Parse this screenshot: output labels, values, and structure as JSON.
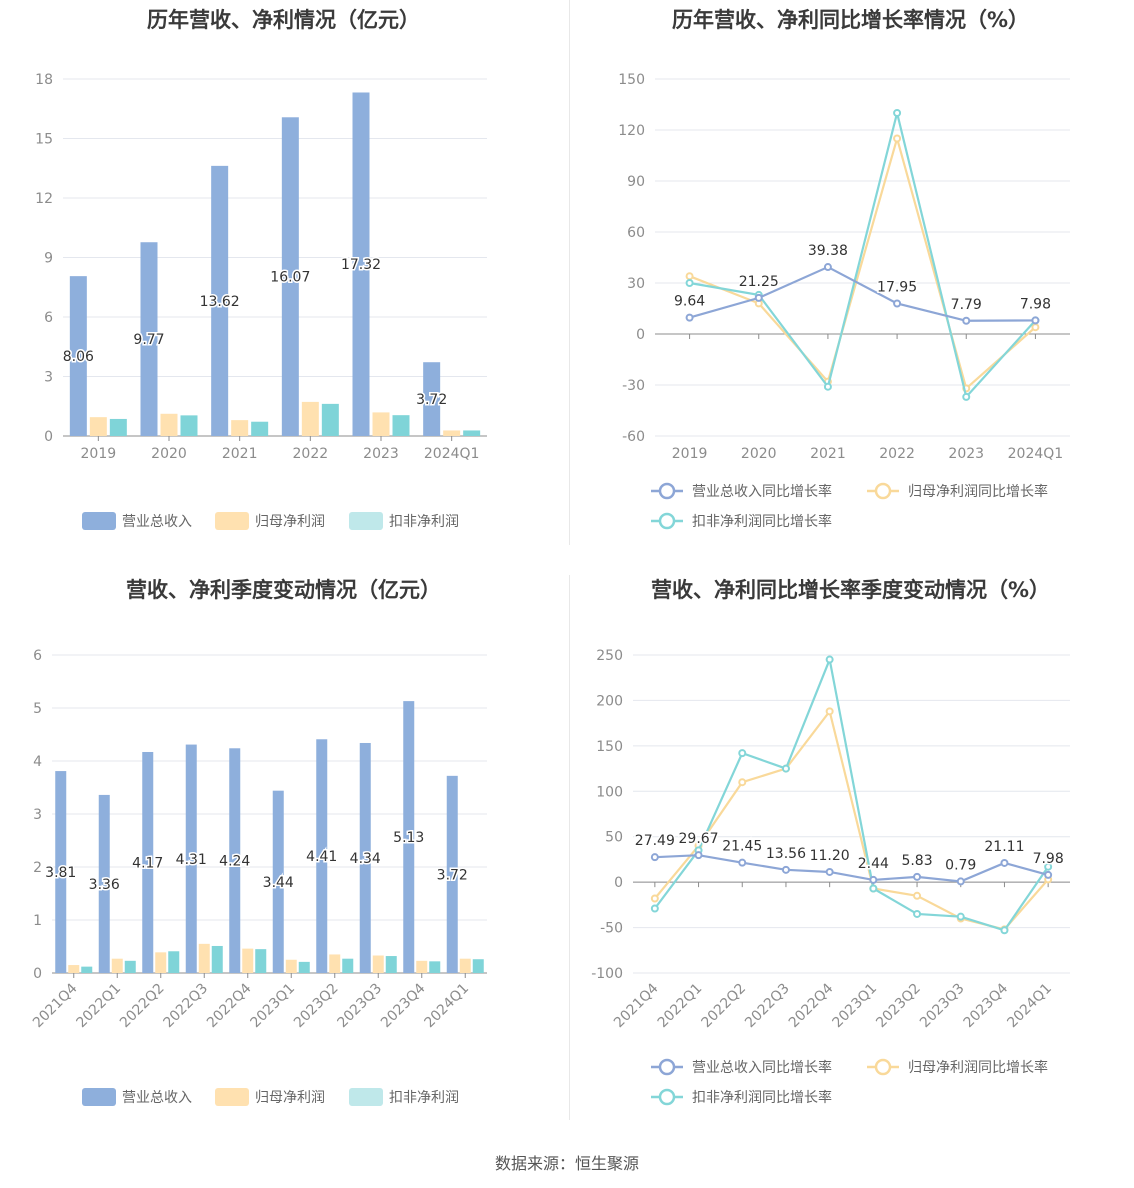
{
  "source_text": "数据来源：恒生聚源",
  "colors": {
    "revenue": "#8eafdc",
    "net_profit": "#ffe1b0",
    "deducted_profit": "#7fd4d8",
    "revenue_line": "#8da6d6",
    "net_line": "#f9d99a",
    "deducted_line": "#83d6d8",
    "grid": "#e4e7ee",
    "axis": "#8c8c8c"
  },
  "chart_data": [
    {
      "type": "bar",
      "title": "历年营收、净利情况（亿元）",
      "categories": [
        "2019",
        "2020",
        "2021",
        "2022",
        "2023",
        "2024Q1"
      ],
      "ylim": [
        0,
        18
      ],
      "yticks": [
        0,
        3,
        6,
        9,
        12,
        15,
        18
      ],
      "series": [
        {
          "name": "营业总收入",
          "values": [
            8.06,
            9.77,
            13.62,
            16.07,
            17.32,
            3.72
          ],
          "labels": [
            "8.06",
            "9.77",
            "13.62",
            "16.07",
            "17.32",
            "3.72"
          ]
        },
        {
          "name": "归母净利润",
          "values": [
            0.95,
            1.12,
            0.8,
            1.72,
            1.19,
            0.28
          ]
        },
        {
          "name": "扣非净利润",
          "values": [
            0.86,
            1.04,
            0.72,
            1.62,
            1.05,
            0.28
          ]
        }
      ],
      "legend": "bottom"
    },
    {
      "type": "line",
      "title": "历年营收、净利同比增长率情况（%）",
      "categories": [
        "2019",
        "2020",
        "2021",
        "2022",
        "2023",
        "2024Q1"
      ],
      "ylim": [
        -60,
        150
      ],
      "yticks": [
        -60,
        -30,
        0,
        30,
        60,
        90,
        120,
        150
      ],
      "series": [
        {
          "name": "营业总收入同比增长率",
          "values": [
            9.64,
            21.25,
            39.38,
            17.95,
            7.79,
            7.98
          ],
          "labels": [
            "9.64",
            "21.25",
            "39.38",
            "17.95",
            "7.79",
            "7.98"
          ]
        },
        {
          "name": "归母净利润同比增长率",
          "values": [
            34,
            18,
            -28,
            115,
            -32,
            4
          ]
        },
        {
          "name": "扣非净利润同比增长率",
          "values": [
            30,
            23,
            -31,
            130,
            -37,
            8
          ]
        }
      ],
      "legend": "bottom"
    },
    {
      "type": "bar",
      "title": "营收、净利季度变动情况（亿元）",
      "categories": [
        "2021Q4",
        "2022Q1",
        "2022Q2",
        "2022Q3",
        "2022Q4",
        "2023Q1",
        "2023Q2",
        "2023Q3",
        "2023Q4",
        "2024Q1"
      ],
      "ylim": [
        0,
        6
      ],
      "yticks": [
        0,
        1,
        2,
        3,
        4,
        5,
        6
      ],
      "series": [
        {
          "name": "营业总收入",
          "values": [
            3.81,
            3.36,
            4.17,
            4.31,
            4.24,
            3.44,
            4.41,
            4.34,
            5.13,
            3.72
          ],
          "labels": [
            "3.81",
            "3.36",
            "4.17",
            "4.31",
            "4.24",
            "3.44",
            "4.41",
            "4.34",
            "5.13",
            "3.72"
          ]
        },
        {
          "name": "归母净利润",
          "values": [
            0.15,
            0.27,
            0.39,
            0.55,
            0.46,
            0.25,
            0.35,
            0.33,
            0.23,
            0.27
          ]
        },
        {
          "name": "扣非净利润",
          "values": [
            0.12,
            0.23,
            0.41,
            0.51,
            0.45,
            0.21,
            0.27,
            0.32,
            0.22,
            0.26
          ]
        }
      ],
      "legend": "bottom"
    },
    {
      "type": "line",
      "title": "营收、净利同比增长率季度变动情况（%）",
      "categories": [
        "2021Q4",
        "2022Q1",
        "2022Q2",
        "2022Q3",
        "2022Q4",
        "2023Q1",
        "2023Q2",
        "2023Q3",
        "2023Q4",
        "2024Q1"
      ],
      "ylim": [
        -100,
        250
      ],
      "yticks": [
        -100,
        -50,
        0,
        50,
        100,
        150,
        200,
        250
      ],
      "series": [
        {
          "name": "营业总收入同比增长率",
          "values": [
            27.49,
            29.67,
            21.45,
            13.56,
            11.2,
            2.44,
            5.83,
            0.79,
            21.11,
            7.98
          ],
          "labels": [
            "27.49",
            "29.67",
            "21.45",
            "13.56",
            "11.20",
            "2.44",
            "5.83",
            "0.79",
            "21.11",
            "7.98"
          ]
        },
        {
          "name": "归母净利润同比增长率",
          "values": [
            -18,
            40,
            110,
            125,
            188,
            -7,
            -15,
            -40,
            -52,
            3
          ]
        },
        {
          "name": "扣非净利润同比增长率",
          "values": [
            -29,
            35,
            142,
            125,
            245,
            -7,
            -35,
            -38,
            -53,
            17
          ]
        }
      ],
      "legend": "bottom"
    }
  ]
}
